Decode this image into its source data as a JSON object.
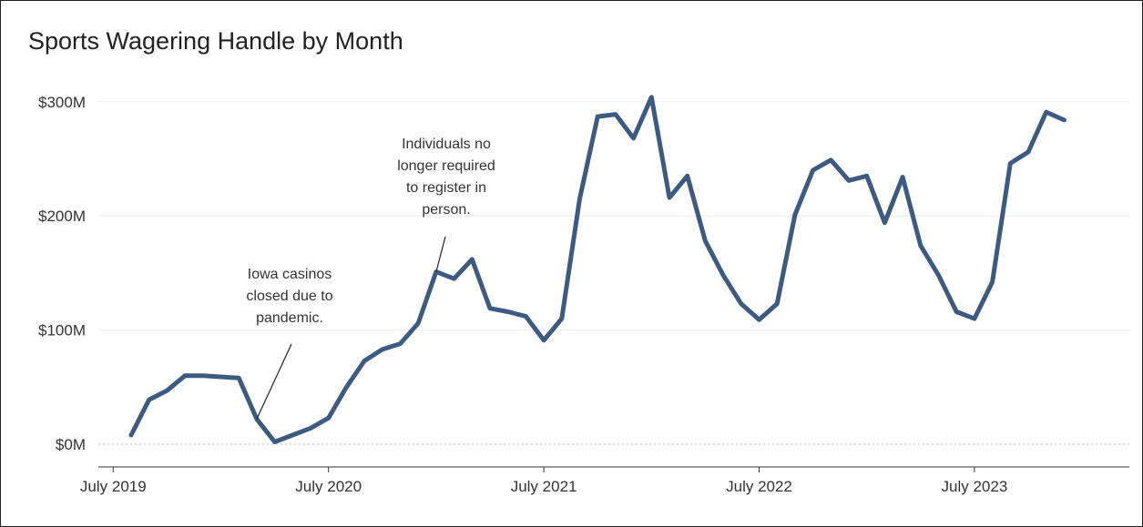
{
  "chart_data": {
    "type": "line",
    "title": "Sports Wagering Handle by Month",
    "xlabel": "",
    "ylabel": "",
    "ylim": [
      0,
      300000000
    ],
    "y_ticks": [
      {
        "value": 300000000,
        "label": "$300M"
      },
      {
        "value": 200000000,
        "label": "$200M"
      },
      {
        "value": 100000000,
        "label": "$100M"
      },
      {
        "value": 0,
        "label": "$0M"
      }
    ],
    "x_ticks": [
      {
        "value": "2019-07",
        "label": "July 2019"
      },
      {
        "value": "2020-07",
        "label": "July 2020"
      },
      {
        "value": "2021-07",
        "label": "July 2021"
      },
      {
        "value": "2022-07",
        "label": "July 2022"
      },
      {
        "value": "2023-07",
        "label": "July 2023"
      }
    ],
    "grid": true,
    "line_color": "#3d5a80",
    "series": [
      {
        "x": [
          "2019-08",
          "2019-09",
          "2019-10",
          "2019-11",
          "2019-12",
          "2020-01",
          "2020-02",
          "2020-03",
          "2020-04",
          "2020-05",
          "2020-06",
          "2020-07",
          "2020-08",
          "2020-09",
          "2020-10",
          "2020-11",
          "2020-12",
          "2021-01",
          "2021-02",
          "2021-03",
          "2021-04",
          "2021-05",
          "2021-06",
          "2021-07",
          "2021-08",
          "2021-09",
          "2021-10",
          "2021-11",
          "2021-12",
          "2022-01",
          "2022-02",
          "2022-03",
          "2022-04",
          "2022-05",
          "2022-06",
          "2022-07",
          "2022-08",
          "2022-09",
          "2022-10",
          "2022-11",
          "2022-12",
          "2023-01",
          "2023-02",
          "2023-03",
          "2023-04",
          "2023-05",
          "2023-06",
          "2023-07",
          "2023-08",
          "2023-09",
          "2023-10",
          "2023-11",
          "2023-12"
        ],
        "values": [
          8,
          39,
          47,
          60,
          60,
          59,
          58,
          22,
          2,
          8,
          14,
          23,
          50,
          73,
          83,
          88,
          106,
          151,
          145,
          162,
          119,
          116,
          112,
          91,
          110,
          215,
          287,
          289,
          268,
          304,
          216,
          235,
          178,
          148,
          123,
          109,
          123,
          201,
          240,
          249,
          231,
          235,
          194,
          234,
          174,
          148,
          116,
          110,
          142,
          246,
          256,
          291,
          284
        ]
      }
    ],
    "annotations": [
      {
        "lines": [
          "Iowa casinos",
          "closed due to",
          "pandemic."
        ],
        "x": "2020-03",
        "y": 22
      },
      {
        "lines": [
          "Individuals no",
          "longer required",
          "to register in",
          "person."
        ],
        "x": "2021-01",
        "y": 151
      }
    ]
  }
}
